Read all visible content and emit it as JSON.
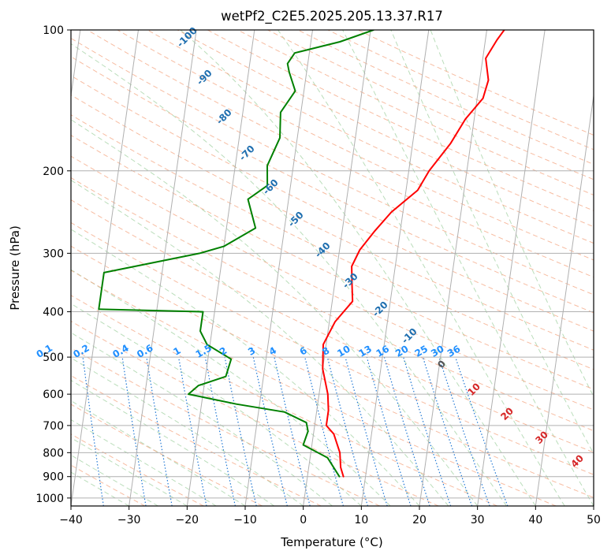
{
  "chart_data": {
    "type": "line",
    "title": "wetPf2_C2E5.2025.205.13.37.R17",
    "xlabel": "Temperature (°C)",
    "ylabel": "Pressure (hPa)",
    "xlim": [
      -40,
      50
    ],
    "ylim": [
      1040,
      100
    ],
    "y_scale": "log",
    "grid": true,
    "x_ticks": [
      -40,
      -30,
      -20,
      -10,
      0,
      10,
      20,
      30,
      40,
      50
    ],
    "y_ticks": [
      100,
      200,
      300,
      400,
      500,
      600,
      700,
      800,
      900,
      1000
    ],
    "dry_adiabat_labels": [
      -100,
      -90,
      -80,
      -70,
      -60,
      -50,
      -40,
      -30,
      -20,
      -10
    ],
    "moist_adiabat_labels": [
      0,
      10,
      20,
      30,
      40
    ],
    "mixing_ratio_labels": [
      "0.1",
      "0.2",
      "0.4",
      "0.6",
      "1",
      "1.5",
      "2",
      "3",
      "4",
      "6",
      "8",
      "10",
      "13",
      "16",
      "20",
      "25",
      "30",
      "36"
    ],
    "series": [
      {
        "color": "#ff0000",
        "x": [
          6.2,
          5.5,
          5.0,
          3.5,
          2.0,
          2.0,
          1.5,
          0.0,
          -0.5,
          1.0,
          3.5,
          3.0,
          2.5,
          3.5,
          5.5,
          8.0,
          12.0,
          13.5,
          16.5,
          18.5,
          21.0,
          21.5,
          20.5,
          22.0,
          23.0
        ],
        "y": [
          900,
          860,
          800,
          730,
          700,
          650,
          600,
          530,
          470,
          420,
          380,
          350,
          320,
          295,
          270,
          245,
          220,
          200,
          175,
          155,
          140,
          128,
          115,
          105,
          100
        ]
      },
      {
        "color": "#008000",
        "x": [
          5.5,
          3.0,
          -1.5,
          -1.0,
          -1.5,
          -5.5,
          -14.0,
          -22.5,
          -21.0,
          -16.5,
          -16.0,
          -20.5,
          -22.0,
          -22.0,
          -40.0,
          -40.0,
          -24.0,
          -20.0,
          -15.0,
          -17.0,
          -14.0,
          -14.5,
          -13.0,
          -13.5,
          -11.5,
          -13.0,
          -13.5,
          -12.5,
          -5.0,
          0.5
        ],
        "y": [
          900,
          820,
          770,
          720,
          690,
          655,
          630,
          600,
          575,
          550,
          505,
          470,
          440,
          400,
          395,
          330,
          300,
          290,
          265,
          230,
          215,
          195,
          170,
          150,
          135,
          123,
          118,
          112,
          106,
          100
        ]
      }
    ]
  }
}
